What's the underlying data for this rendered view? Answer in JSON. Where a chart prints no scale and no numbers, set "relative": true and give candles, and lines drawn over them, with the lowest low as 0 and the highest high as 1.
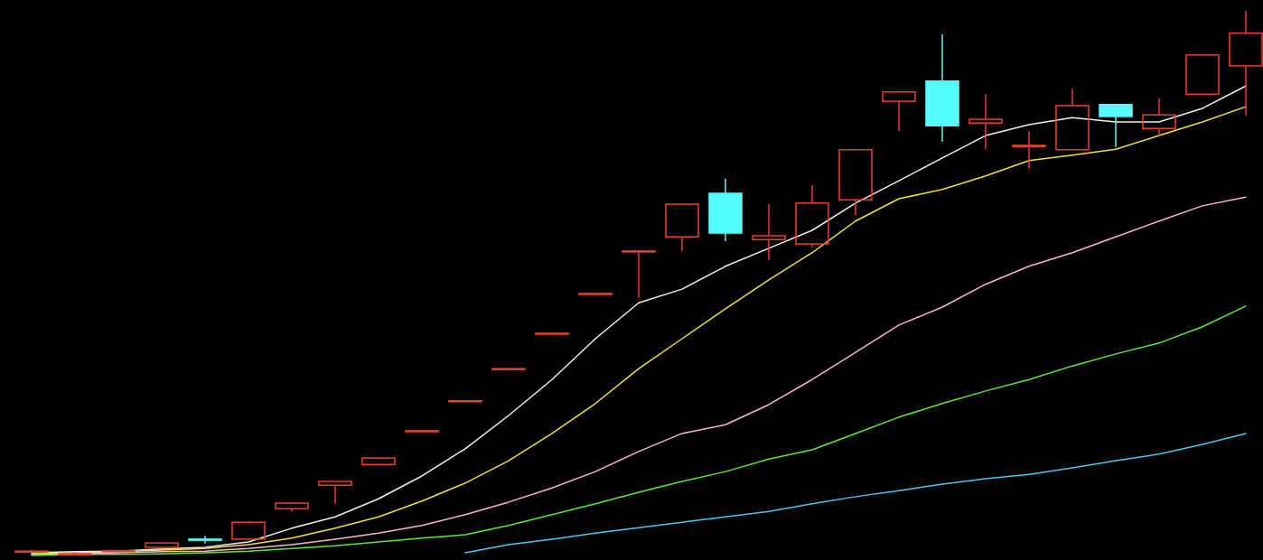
{
  "chart_data": {
    "type": "candlestick",
    "relative": true,
    "categories": [
      null,
      null,
      null,
      null,
      null,
      null,
      null,
      null,
      null,
      null,
      null,
      null,
      null,
      null,
      null,
      null,
      null,
      null,
      null,
      null,
      null,
      null,
      null,
      null,
      null,
      null,
      null,
      null,
      null
    ],
    "ohlc": [
      [
        0.008,
        0.01,
        0.005,
        0.008
      ],
      [
        0.003,
        0.005,
        0,
        0.003
      ],
      [
        0.008,
        0.01,
        0.007,
        0.009
      ],
      [
        0.015,
        0.025,
        0.015,
        0.023
      ],
      [
        0.03,
        0.036,
        0.022,
        0.028
      ],
      [
        0.03,
        0.063,
        0.028,
        0.061
      ],
      [
        0.086,
        0.098,
        0.081,
        0.096
      ],
      [
        0.129,
        0.136,
        0.095,
        0.136
      ],
      [
        0.167,
        0.179,
        0.167,
        0.179
      ],
      [
        0.229,
        0.229,
        0.229,
        0.229
      ],
      [
        0.284,
        0.284,
        0.284,
        0.284
      ],
      [
        0.343,
        0.343,
        0.343,
        0.343
      ],
      [
        0.408,
        0.408,
        0.408,
        0.408
      ],
      [
        0.481,
        0.481,
        0.481,
        0.481
      ],
      [
        0.559,
        0.559,
        0.473,
        0.559
      ],
      [
        0.585,
        0.645,
        0.559,
        0.645
      ],
      [
        0.665,
        0.692,
        0.577,
        0.592
      ],
      [
        0.58,
        0.645,
        0.542,
        0.587
      ],
      [
        0.572,
        0.68,
        0.566,
        0.647
      ],
      [
        0.653,
        0.745,
        0.625,
        0.745
      ],
      [
        0.834,
        0.851,
        0.779,
        0.851
      ],
      [
        0.871,
        0.957,
        0.76,
        0.789
      ],
      [
        0.794,
        0.847,
        0.746,
        0.801
      ],
      [
        0.751,
        0.779,
        0.71,
        0.753
      ],
      [
        0.745,
        0.857,
        0.745,
        0.826
      ],
      [
        0.828,
        0.828,
        0.75,
        0.806
      ],
      [
        0.784,
        0.839,
        0.769,
        0.809
      ],
      [
        0.847,
        0.919,
        0.847,
        0.919
      ],
      [
        0.899,
        1,
        0.808,
        0.959
      ]
    ],
    "colors": [
      "#e8412c",
      "#e8412c",
      "#e8412c",
      "#e8412c",
      "#54fcfc",
      "#e8412c",
      "#e8412c",
      "#e8412c",
      "#e8412c",
      "#e8412c",
      "#e8412c",
      "#e8412c",
      "#e8412c",
      "#e8412c",
      "#e8412c",
      "#e8412c",
      "#54fcfc",
      "#e8412c",
      "#e8412c",
      "#e8412c",
      "#e8412c",
      "#54fcfc",
      "#e8412c",
      "#e8412c",
      "#e8412c",
      "#54fcfc",
      "#e8412c",
      "#e8412c",
      "#e8412c"
    ],
    "series": [
      {
        "type": "line",
        "color": "#f0f0f0",
        "values": [
          0.005,
          0.007,
          0.008,
          0.012,
          0.015,
          0.025,
          0.05,
          0.071,
          0.104,
          0.146,
          0.196,
          0.257,
          0.323,
          0.398,
          0.464,
          0.489,
          0.531,
          0.564,
          0.597,
          0.647,
          0.688,
          0.73,
          0.771,
          0.791,
          0.804,
          0.796,
          0.796,
          0.821,
          0.862
        ]
      },
      {
        "type": "line",
        "color": "#f0e040",
        "values": [
          0.003,
          0.005,
          0.007,
          0.01,
          0.013,
          0.02,
          0.032,
          0.05,
          0.071,
          0.1,
          0.133,
          0.174,
          0.224,
          0.279,
          0.343,
          0.398,
          0.453,
          0.506,
          0.556,
          0.614,
          0.655,
          0.672,
          0.697,
          0.725,
          0.735,
          0.746,
          0.771,
          0.796,
          0.824
        ]
      },
      {
        "type": "line",
        "color": "#f8b8c8",
        "values": [
          0.002,
          0.003,
          0.005,
          0.007,
          0.008,
          0.013,
          0.02,
          0.03,
          0.041,
          0.055,
          0.075,
          0.098,
          0.124,
          0.154,
          0.191,
          0.224,
          0.24,
          0.277,
          0.323,
          0.373,
          0.423,
          0.456,
          0.498,
          0.531,
          0.556,
          0.585,
          0.614,
          0.642,
          0.658
        ]
      },
      {
        "type": "line",
        "color": "#5ee83a",
        "values": [
          0,
          0.002,
          0.002,
          0.003,
          0.005,
          0.008,
          0.013,
          0.018,
          0.025,
          0.032,
          0.038,
          0.055,
          0.075,
          0.095,
          0.116,
          0.136,
          0.154,
          0.177,
          0.194,
          0.224,
          0.254,
          0.279,
          0.302,
          0.323,
          0.348,
          0.37,
          0.39,
          0.42,
          0.458
        ]
      },
      {
        "type": "line",
        "color": "#4ac8f0",
        "values": [
          null,
          null,
          null,
          null,
          null,
          null,
          null,
          null,
          null,
          null,
          0.005,
          0.02,
          0.03,
          0.041,
          0.051,
          0.061,
          0.071,
          0.081,
          0.095,
          0.108,
          0.119,
          0.131,
          0.141,
          0.149,
          0.161,
          0.174,
          0.186,
          0.204,
          0.224
        ]
      }
    ]
  }
}
